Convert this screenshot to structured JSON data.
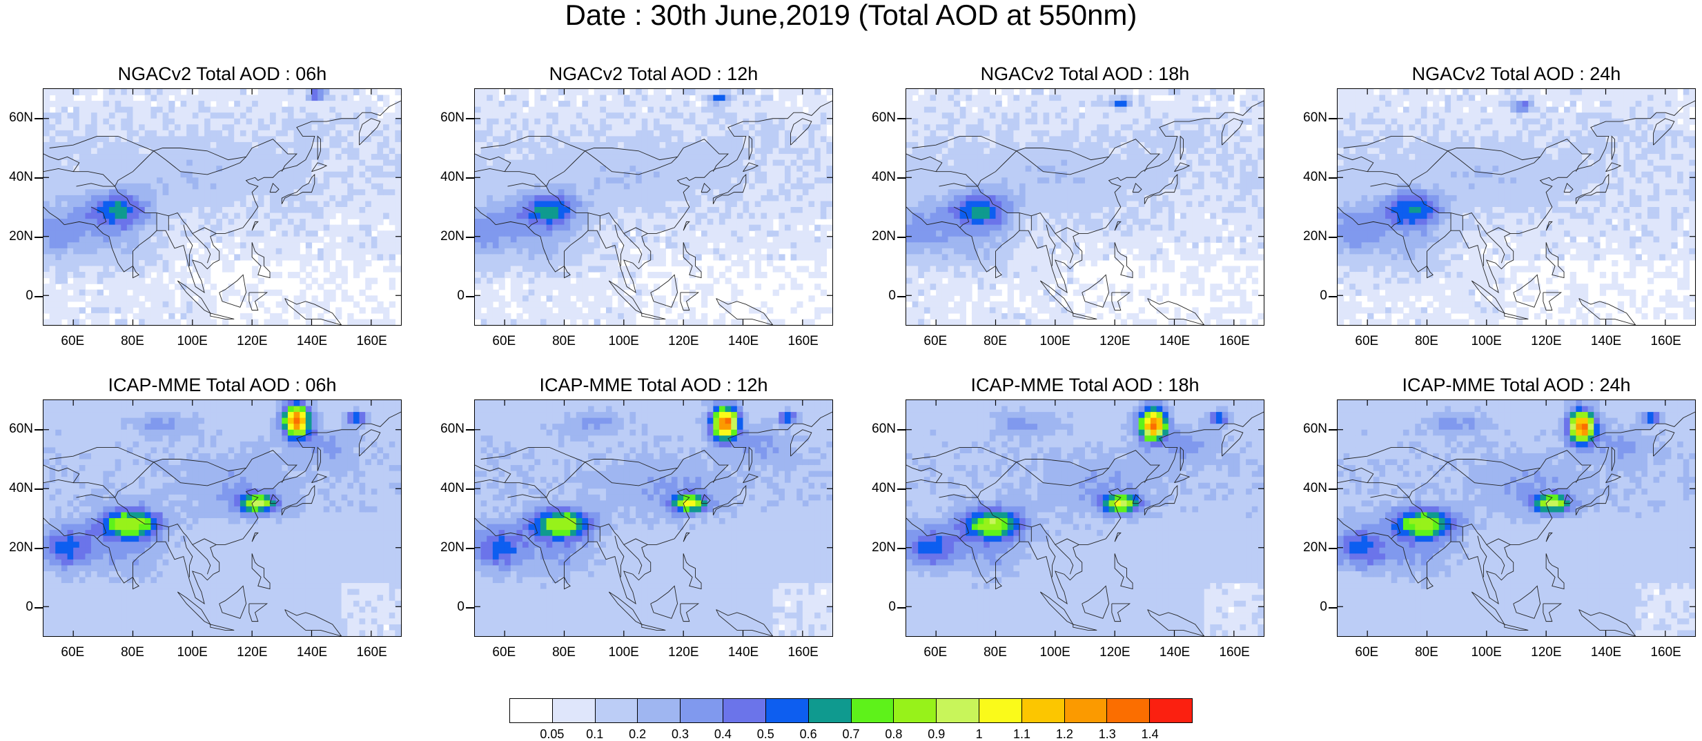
{
  "title": "Date : 30th June,2019 (Total AOD at 550nm)",
  "panels": [
    {
      "title": "NGACv2 Total AOD : 06h",
      "model": "ngac",
      "hour": 6
    },
    {
      "title": "NGACv2 Total AOD : 12h",
      "model": "ngac",
      "hour": 12
    },
    {
      "title": "NGACv2 Total AOD : 18h",
      "model": "ngac",
      "hour": 18
    },
    {
      "title": "NGACv2 Total AOD : 24h",
      "model": "ngac",
      "hour": 24
    },
    {
      "title": "ICAP-MME Total AOD : 06h",
      "model": "icap",
      "hour": 6
    },
    {
      "title": "ICAP-MME Total AOD : 12h",
      "model": "icap",
      "hour": 12
    },
    {
      "title": "ICAP-MME Total AOD : 18h",
      "model": "icap",
      "hour": 18
    },
    {
      "title": "ICAP-MME Total AOD : 24h",
      "model": "icap",
      "hour": 24
    }
  ],
  "map": {
    "lat_labels": [
      "60N",
      "40N",
      "20N",
      "0"
    ],
    "lat_values": [
      60,
      40,
      20,
      0
    ],
    "lon_labels": [
      "60E",
      "80E",
      "100E",
      "120E",
      "140E",
      "160E"
    ],
    "lon_values": [
      60,
      80,
      100,
      120,
      140,
      160
    ],
    "lon_range": [
      50,
      170
    ],
    "lat_range": [
      -10,
      70
    ]
  },
  "colorbar": {
    "labels": [
      "0.05",
      "0.1",
      "0.2",
      "0.3",
      "0.4",
      "0.5",
      "0.6",
      "0.7",
      "0.8",
      "0.9",
      "1",
      "1.1",
      "1.2",
      "1.3",
      "1.4"
    ],
    "colors": [
      "#ffffff",
      "#dfe6fb",
      "#bccdf6",
      "#9fb6f1",
      "#8099ee",
      "#6b74ea",
      "#0d5ef0",
      "#0f9a8f",
      "#5ef21a",
      "#97f21a",
      "#c8f55a",
      "#fafa1a",
      "#fcc600",
      "#fb9a00",
      "#fb6e00",
      "#fb2010"
    ]
  }
}
